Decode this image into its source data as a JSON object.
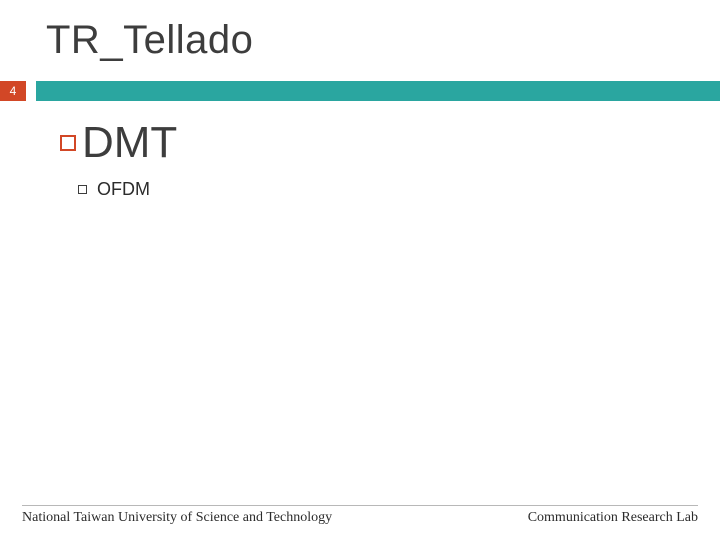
{
  "slide": {
    "title": "TR_Tellado",
    "page_number": "4"
  },
  "colors": {
    "accent": "#d24726",
    "band": "#2aa6a0",
    "title_text": "#3d3d3d",
    "body_text": "#2b2b2b",
    "rule": "#b8b8b8",
    "background": "#ffffff"
  },
  "content": {
    "level1": {
      "text": "DMT"
    },
    "level2": {
      "text": "OFDM"
    }
  },
  "footer": {
    "left": "National Taiwan University of Science and Technology",
    "right": "Communication Research Lab"
  }
}
